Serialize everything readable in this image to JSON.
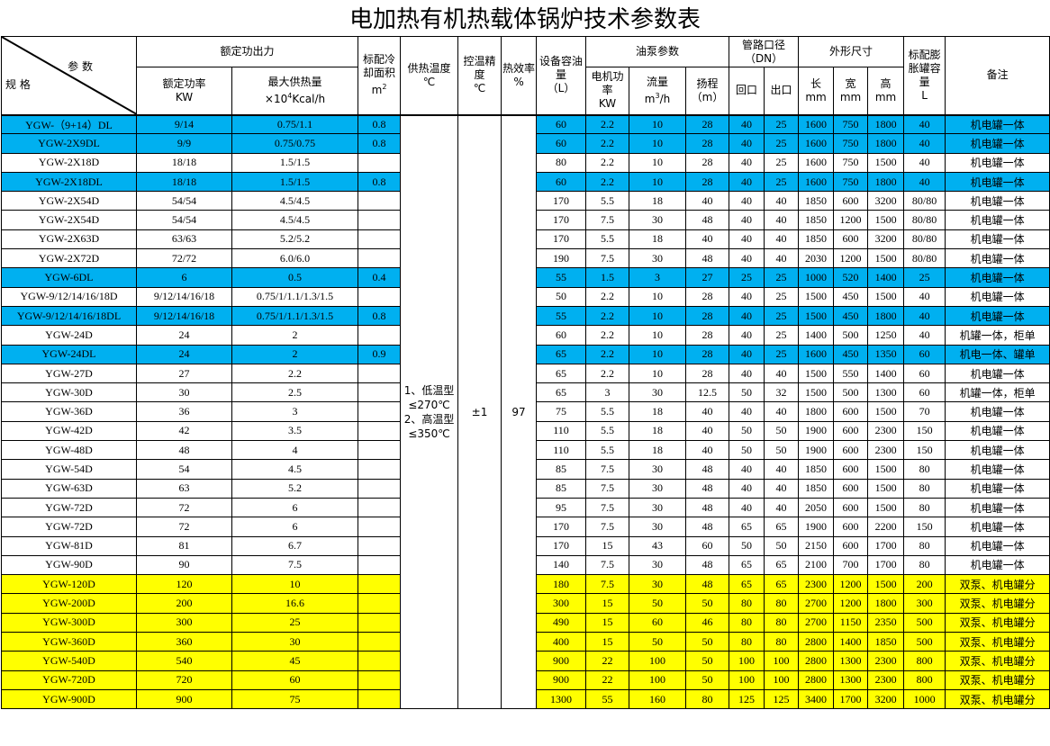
{
  "title": "电加热有机热载体锅炉技术参数表",
  "header": {
    "param": "参 数",
    "spec": "规 格",
    "rated_output": "额定功出力",
    "rated_power": "额定功率",
    "rated_power_unit": "KW",
    "max_heat": "最大供热量",
    "max_heat_unit_pre": "×10",
    "max_heat_unit_sup": "4",
    "max_heat_unit_post": "Kcal/h",
    "cooling_area": "标配冷却面积",
    "cooling_area_unit": "m",
    "cooling_area_sup": "2",
    "supply_temp": "供热温度",
    "supply_temp_unit": "℃",
    "precision": "控温精度",
    "precision_unit": "℃",
    "efficiency": "热效率",
    "efficiency_unit": "%",
    "oil_capacity": "设备容油量",
    "oil_capacity_unit": "（L）",
    "pump": "油泵参数",
    "motor_power": "电机功率",
    "motor_power_unit": "KW",
    "flow": "流量",
    "flow_unit_pre": "m",
    "flow_unit_sup": "3",
    "flow_unit_post": "/h",
    "head": "扬程",
    "head_unit": "（m）",
    "pipe": "管路口径（DN）",
    "return": "回口",
    "outlet": "出口",
    "dimensions": "外形尺寸",
    "length": "长",
    "width": "宽",
    "height": "高",
    "mm": "mm",
    "tank": "标配膨胀罐容量",
    "tank_unit": "L",
    "note": "备注"
  },
  "merged": {
    "supply_temp": "1、低温型≤270℃ 2、高温型≤350℃",
    "precision": "±1",
    "efficiency": "97"
  },
  "colors": {
    "blue": "#00b0f0",
    "yellow": "#ffff00"
  },
  "rows": [
    [
      "YGW-（9+14）DL",
      "9/14",
      "0.75/1.1",
      "0.8",
      "60",
      "2.2",
      "10",
      "28",
      "40",
      "25",
      "1600",
      "750",
      "1800",
      "40",
      "机电罐一体",
      "blue"
    ],
    [
      "YGW-2X9DL",
      "9/9",
      "0.75/0.75",
      "0.8",
      "60",
      "2.2",
      "10",
      "28",
      "40",
      "25",
      "1600",
      "750",
      "1800",
      "40",
      "机电罐一体",
      "blue"
    ],
    [
      "YGW-2X18D",
      "18/18",
      "1.5/1.5",
      "",
      "80",
      "2.2",
      "10",
      "28",
      "40",
      "25",
      "1600",
      "750",
      "1500",
      "40",
      "机电罐一体",
      "white"
    ],
    [
      "YGW-2X18DL",
      "18/18",
      "1.5/1.5",
      "0.8",
      "60",
      "2.2",
      "10",
      "28",
      "40",
      "25",
      "1600",
      "750",
      "1800",
      "40",
      "机电罐一体",
      "blue"
    ],
    [
      "YGW-2X54D",
      "54/54",
      "4.5/4.5",
      "",
      "170",
      "5.5",
      "18",
      "40",
      "40",
      "40",
      "1850",
      "600",
      "3200",
      "80/80",
      "机电罐一体",
      "white"
    ],
    [
      "YGW-2X54D",
      "54/54",
      "4.5/4.5",
      "",
      "170",
      "7.5",
      "30",
      "48",
      "40",
      "40",
      "1850",
      "1200",
      "1500",
      "80/80",
      "机电罐一体",
      "white"
    ],
    [
      "YGW-2X63D",
      "63/63",
      "5.2/5.2",
      "",
      "170",
      "5.5",
      "18",
      "40",
      "40",
      "40",
      "1850",
      "600",
      "3200",
      "80/80",
      "机电罐一体",
      "white"
    ],
    [
      "YGW-2X72D",
      "72/72",
      "6.0/6.0",
      "",
      "190",
      "7.5",
      "30",
      "48",
      "40",
      "40",
      "2030",
      "1200",
      "1500",
      "80/80",
      "机电罐一体",
      "white"
    ],
    [
      "YGW-6DL",
      "6",
      "0.5",
      "0.4",
      "55",
      "1.5",
      "3",
      "27",
      "25",
      "25",
      "1000",
      "520",
      "1400",
      "25",
      "机电罐一体",
      "blue"
    ],
    [
      "YGW-9/12/14/16/18D",
      "9/12/14/16/18",
      "0.75/1/1.1/1.3/1.5",
      "",
      "50",
      "2.2",
      "10",
      "28",
      "40",
      "25",
      "1500",
      "450",
      "1500",
      "40",
      "机电罐一体",
      "white"
    ],
    [
      "YGW-9/12/14/16/18DL",
      "9/12/14/16/18",
      "0.75/1/1.1/1.3/1.5",
      "0.8",
      "55",
      "2.2",
      "10",
      "28",
      "40",
      "25",
      "1500",
      "450",
      "1800",
      "40",
      "机电罐一体",
      "blue"
    ],
    [
      "YGW-24D",
      "24",
      "2",
      "",
      "60",
      "2.2",
      "10",
      "28",
      "40",
      "25",
      "1400",
      "500",
      "1250",
      "40",
      "机罐一体，柜单",
      "white"
    ],
    [
      "YGW-24DL",
      "24",
      "2",
      "0.9",
      "65",
      "2.2",
      "10",
      "28",
      "40",
      "25",
      "1600",
      "450",
      "1350",
      "60",
      "机电一体、罐单",
      "blue"
    ],
    [
      "YGW-27D",
      "27",
      "2.2",
      "",
      "65",
      "2.2",
      "10",
      "28",
      "40",
      "40",
      "1500",
      "550",
      "1400",
      "60",
      "机电罐一体",
      "white"
    ],
    [
      "YGW-30D",
      "30",
      "2.5",
      "",
      "65",
      "3",
      "30",
      "12.5",
      "50",
      "32",
      "1500",
      "500",
      "1300",
      "60",
      "机罐一体，柜单",
      "white"
    ],
    [
      "YGW-36D",
      "36",
      "3",
      "",
      "75",
      "5.5",
      "18",
      "40",
      "40",
      "40",
      "1800",
      "600",
      "1500",
      "70",
      "机电罐一体",
      "white"
    ],
    [
      "YGW-42D",
      "42",
      "3.5",
      "",
      "110",
      "5.5",
      "18",
      "40",
      "50",
      "50",
      "1900",
      "600",
      "2300",
      "150",
      "机电罐一体",
      "white"
    ],
    [
      "YGW-48D",
      "48",
      "4",
      "",
      "110",
      "5.5",
      "18",
      "40",
      "50",
      "50",
      "1900",
      "600",
      "2300",
      "150",
      "机电罐一体",
      "white"
    ],
    [
      "YGW-54D",
      "54",
      "4.5",
      "",
      "85",
      "7.5",
      "30",
      "48",
      "40",
      "40",
      "1850",
      "600",
      "1500",
      "80",
      "机电罐一体",
      "white"
    ],
    [
      "YGW-63D",
      "63",
      "5.2",
      "",
      "85",
      "7.5",
      "30",
      "48",
      "40",
      "40",
      "1850",
      "600",
      "1500",
      "80",
      "机电罐一体",
      "white"
    ],
    [
      "YGW-72D",
      "72",
      "6",
      "",
      "95",
      "7.5",
      "30",
      "48",
      "40",
      "40",
      "2050",
      "600",
      "1500",
      "80",
      "机电罐一体",
      "white"
    ],
    [
      "YGW-72D",
      "72",
      "6",
      "",
      "170",
      "7.5",
      "30",
      "48",
      "65",
      "65",
      "1900",
      "600",
      "2200",
      "150",
      "机电罐一体",
      "white"
    ],
    [
      "YGW-81D",
      "81",
      "6.7",
      "",
      "170",
      "15",
      "43",
      "60",
      "50",
      "50",
      "2150",
      "600",
      "1700",
      "80",
      "机电罐一体",
      "white"
    ],
    [
      "YGW-90D",
      "90",
      "7.5",
      "",
      "140",
      "7.5",
      "30",
      "48",
      "65",
      "65",
      "2100",
      "700",
      "1700",
      "80",
      "机电罐一体",
      "white"
    ],
    [
      "YGW-120D",
      "120",
      "10",
      "",
      "180",
      "7.5",
      "30",
      "48",
      "65",
      "65",
      "2300",
      "1200",
      "1500",
      "200",
      "双泵、机电罐分",
      "yellow"
    ],
    [
      "YGW-200D",
      "200",
      "16.6",
      "",
      "300",
      "15",
      "50",
      "50",
      "80",
      "80",
      "2700",
      "1200",
      "1800",
      "300",
      "双泵、机电罐分",
      "yellow"
    ],
    [
      "YGW-300D",
      "300",
      "25",
      "",
      "490",
      "15",
      "60",
      "46",
      "80",
      "80",
      "2700",
      "1150",
      "2350",
      "500",
      "双泵、机电罐分",
      "yellow"
    ],
    [
      "YGW-360D",
      "360",
      "30",
      "",
      "400",
      "15",
      "50",
      "50",
      "80",
      "80",
      "2800",
      "1400",
      "1850",
      "500",
      "双泵、机电罐分",
      "yellow"
    ],
    [
      "YGW-540D",
      "540",
      "45",
      "",
      "900",
      "22",
      "100",
      "50",
      "100",
      "100",
      "2800",
      "1300",
      "2300",
      "800",
      "双泵、机电罐分",
      "yellow"
    ],
    [
      "YGW-720D",
      "720",
      "60",
      "",
      "900",
      "22",
      "100",
      "50",
      "100",
      "100",
      "2800",
      "1300",
      "2300",
      "800",
      "双泵、机电罐分",
      "yellow"
    ],
    [
      "YGW-900D",
      "900",
      "75",
      "",
      "1300",
      "55",
      "160",
      "80",
      "125",
      "125",
      "3400",
      "1700",
      "3200",
      "1000",
      "双泵、机电罐分",
      "yellow"
    ]
  ]
}
